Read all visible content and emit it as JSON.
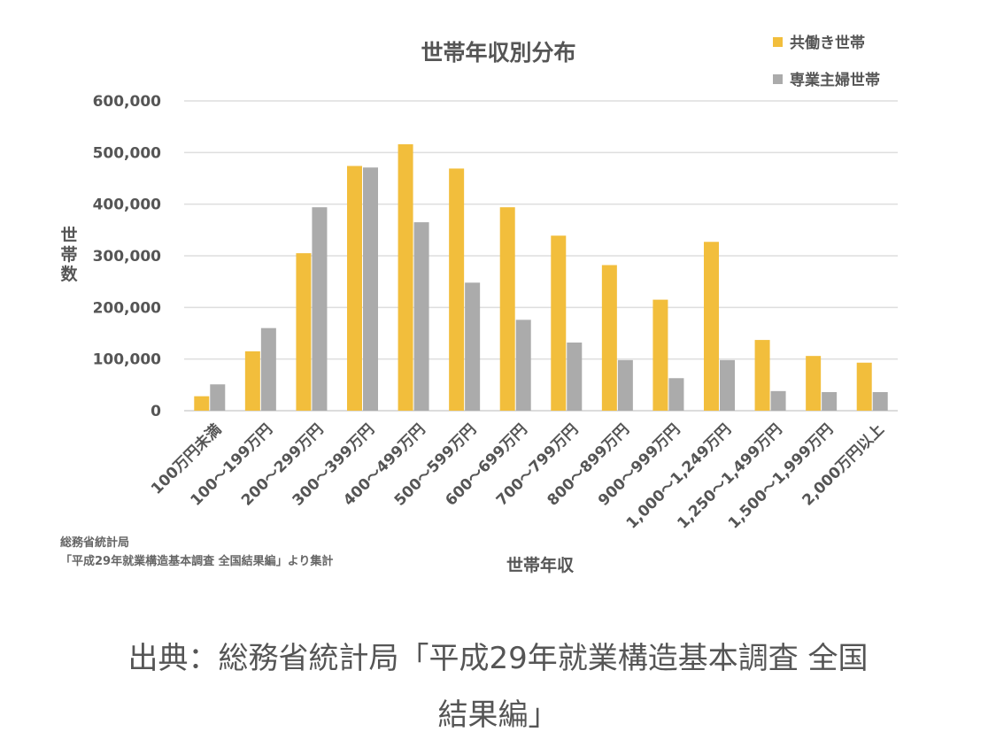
{
  "chart_data": {
    "type": "bar",
    "title": "世帯年収別分布",
    "xlabel": "世帯年収",
    "ylabel": "世帯数",
    "ylim": [
      0,
      600000
    ],
    "yticks": [
      "0",
      "100,000",
      "200,000",
      "300,000",
      "400,000",
      "500,000",
      "600,000"
    ],
    "grid": true,
    "legend_position": "top-right",
    "categories": [
      "100万円未満",
      "100～199万円",
      "200～299万円",
      "300～399万円",
      "400～499万円",
      "500～599万円",
      "600～699万円",
      "700～799万円",
      "800～899万円",
      "900～999万円",
      "1,000～1,249万円",
      "1,250～1,499万円",
      "1,500～1,999万円",
      "2,000万円以上"
    ],
    "series": [
      {
        "name": "共働き世帯",
        "color": "#F2BE3C",
        "values": [
          28000,
          115000,
          305000,
          474000,
          516000,
          469000,
          394000,
          339000,
          282000,
          215000,
          327000,
          137000,
          106000,
          93000
        ]
      },
      {
        "name": "専業主婦世帯",
        "color": "#ABABAB",
        "values": [
          51000,
          160000,
          394000,
          471000,
          365000,
          248000,
          176000,
          132000,
          98000,
          63000,
          98000,
          38000,
          36000,
          36000
        ]
      }
    ],
    "source_note": [
      "総務省統計局",
      "「平成29年就業構造基本調査 全国結果編」より集計"
    ]
  },
  "caption": {
    "line1": "出典：総務省統計局「平成29年就業構造基本調査 全国",
    "line2": "結果編」"
  }
}
